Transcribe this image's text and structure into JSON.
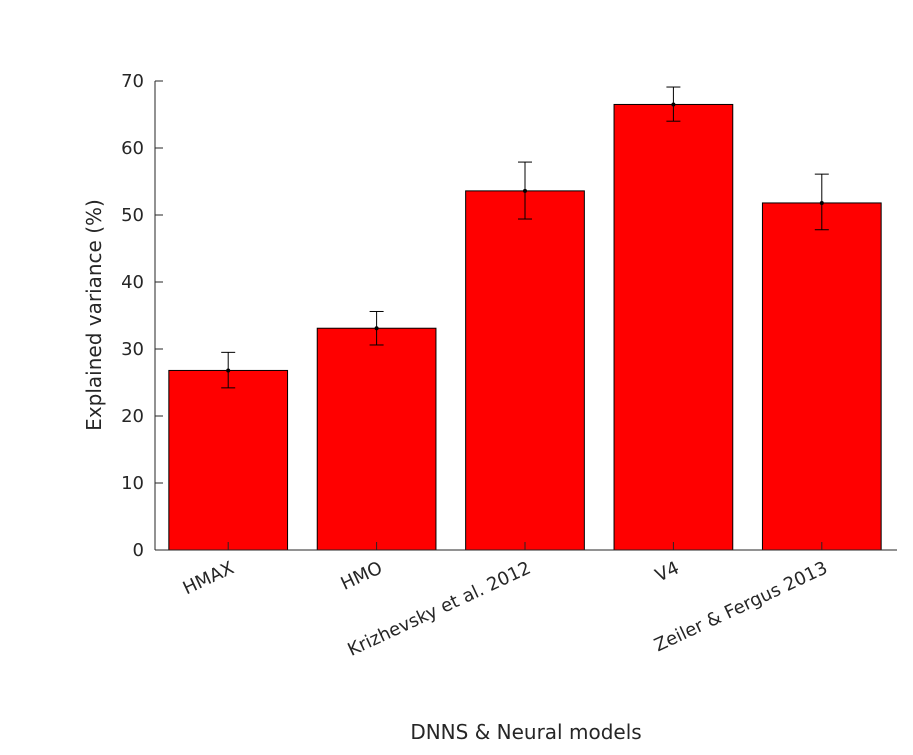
{
  "chart_data": {
    "type": "bar",
    "categories": [
      "HMAX",
      "HMO",
      "Krizhevsky et al. 2012",
      "V4",
      "Zeiler & Fergus 2013"
    ],
    "values": [
      26.8,
      33.1,
      53.6,
      66.5,
      51.8
    ],
    "errors": [
      [
        24.2,
        29.5
      ],
      [
        30.6,
        35.6
      ],
      [
        49.4,
        57.9
      ],
      [
        64.0,
        69.1
      ],
      [
        47.8,
        56.1
      ]
    ],
    "xlabel": "DNNS & Neural models",
    "ylabel": "Explained variance (%)",
    "ylim": [
      0,
      70
    ],
    "yticks": [
      "0",
      "10",
      "20",
      "30",
      "40",
      "50",
      "60",
      "70"
    ],
    "ytick_values": [
      0,
      10,
      20,
      30,
      40,
      50,
      60,
      70
    ],
    "grid": false,
    "colors": {
      "bar": "#ff0000",
      "edge": "#000000",
      "axis": "#262626"
    }
  }
}
